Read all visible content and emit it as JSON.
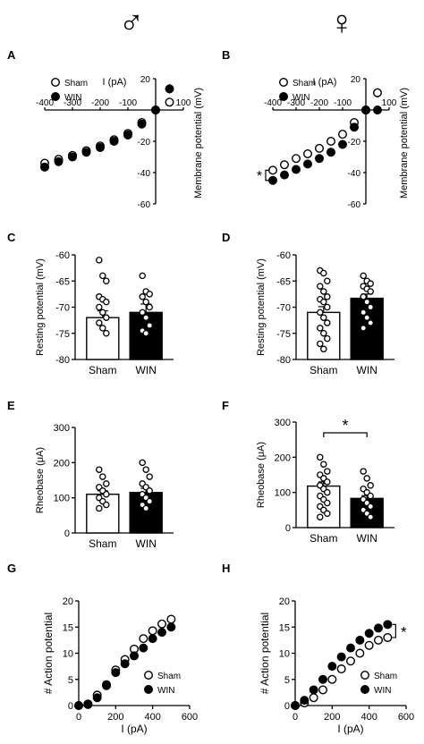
{
  "header": {
    "male_symbol": "♂",
    "female_symbol": "♀"
  },
  "legend_labels": {
    "sham": "Sham",
    "win": "WIN"
  },
  "significance_mark": "*",
  "colors": {
    "sham_fill": "#ffffff",
    "win_fill": "#000000",
    "stroke": "#000000"
  },
  "chart_data": [
    {
      "panel": "A",
      "type": "scatter",
      "xlabel": "I (pA)",
      "ylabel": "Membrane potential (mV)",
      "xlim": [
        -400,
        100
      ],
      "ylim": [
        -60,
        20
      ],
      "xticks": [
        -400,
        -300,
        -200,
        -100,
        100
      ],
      "xtick_labels": [
        "-400",
        "-300",
        "-200",
        "-100",
        "100"
      ],
      "yticks": [
        20,
        -20,
        -40,
        -60
      ],
      "ytick_labels": [
        "20",
        "-20",
        "-40",
        "-60"
      ],
      "legend": "top-left",
      "series": [
        {
          "name": "Sham",
          "x": [
            -400,
            -350,
            -300,
            -250,
            -200,
            -150,
            -100,
            -50,
            0,
            50
          ],
          "y": [
            -34,
            -31.5,
            -29,
            -26,
            -23,
            -19,
            -15,
            -8,
            0,
            5
          ],
          "err": [
            0,
            0,
            0,
            0,
            0,
            0,
            0,
            0,
            0,
            1.5
          ]
        },
        {
          "name": "WIN",
          "x": [
            -400,
            -350,
            -300,
            -250,
            -200,
            -150,
            -100,
            -50,
            0,
            50
          ],
          "y": [
            -36.5,
            -33,
            -30,
            -27,
            -24,
            -20,
            -16,
            -9,
            0,
            13.5
          ],
          "err": [
            0,
            0,
            0,
            0,
            0,
            0,
            0,
            0,
            0,
            3
          ]
        }
      ]
    },
    {
      "panel": "B",
      "type": "scatter",
      "xlabel": "I (pA)",
      "ylabel": "Membrane potential (mV)",
      "xlim": [
        -400,
        100
      ],
      "ylim": [
        -60,
        20
      ],
      "xticks": [
        -400,
        -300,
        -200,
        -100,
        100
      ],
      "xtick_labels": [
        "-400",
        "-300",
        "-200",
        "-100",
        "100"
      ],
      "yticks": [
        20,
        -20,
        -40,
        -60
      ],
      "ytick_labels": [
        "20",
        "-20",
        "-40",
        "-60"
      ],
      "legend": "top-left",
      "annotation": "*",
      "series": [
        {
          "name": "Sham",
          "x": [
            -400,
            -350,
            -300,
            -250,
            -200,
            -150,
            -100,
            -50,
            0,
            50
          ],
          "y": [
            -38.5,
            -35,
            -31,
            -28,
            -24.5,
            -20,
            -15.5,
            -8,
            0,
            11
          ],
          "err": [
            0,
            0,
            0,
            0,
            0,
            0,
            0,
            0,
            0,
            3
          ]
        },
        {
          "name": "WIN",
          "x": [
            -400,
            -350,
            -300,
            -250,
            -200,
            -150,
            -100,
            -50,
            0,
            50
          ],
          "y": [
            -45,
            -41.5,
            -38,
            -34.5,
            -31,
            -27,
            -22,
            -11,
            0,
            0
          ],
          "err": [
            0,
            0,
            0,
            0,
            0,
            0,
            0,
            0,
            0,
            0
          ]
        }
      ]
    },
    {
      "panel": "C",
      "type": "bar",
      "ylabel": "Resting potential (mV)",
      "ylim": [
        -80,
        -60
      ],
      "yticks": [
        -60,
        -65,
        -70,
        -75,
        -80
      ],
      "categories": [
        "Sham",
        "WIN"
      ],
      "values": [
        -72,
        -71
      ],
      "errors": [
        1.3,
        1.6
      ],
      "points": [
        [
          -61,
          -64,
          -65,
          -68,
          -68.5,
          -69,
          -70,
          -71,
          -72,
          -73,
          -74,
          -75
        ],
        [
          -64,
          -67,
          -67.5,
          -68,
          -69,
          -70,
          -71,
          -72,
          -73.5,
          -74.5,
          -75
        ]
      ]
    },
    {
      "panel": "D",
      "type": "bar",
      "ylabel": "Resting potential (mV)",
      "ylim": [
        -80,
        -60
      ],
      "yticks": [
        -60,
        -65,
        -70,
        -75,
        -80
      ],
      "categories": [
        "Sham",
        "WIN"
      ],
      "values": [
        -71,
        -68.3
      ],
      "errors": [
        1.1,
        0.8
      ],
      "points": [
        [
          -63,
          -63.5,
          -65,
          -66,
          -67,
          -68,
          -68.5,
          -69,
          -70,
          -71,
          -72,
          -73,
          -74,
          -75,
          -76,
          -77,
          -78
        ],
        [
          -64,
          -65,
          -65.5,
          -66,
          -66.5,
          -67,
          -68,
          -69,
          -70,
          -71,
          -72,
          -73,
          -74
        ]
      ]
    },
    {
      "panel": "E",
      "type": "bar",
      "ylabel": "Rheobase (μA)",
      "ylim": [
        0,
        300
      ],
      "yticks": [
        0,
        100,
        200,
        300
      ],
      "categories": [
        "Sham",
        "WIN"
      ],
      "values": [
        110,
        115
      ],
      "errors": [
        10,
        12
      ],
      "points": [
        [
          180,
          160,
          140,
          130,
          120,
          110,
          100,
          90,
          80,
          70
        ],
        [
          200,
          180,
          160,
          140,
          130,
          120,
          110,
          100,
          90,
          80,
          70
        ]
      ]
    },
    {
      "panel": "F",
      "type": "bar",
      "ylabel": "Rheobase (μA)",
      "ylim": [
        0,
        300
      ],
      "yticks": [
        0,
        100,
        200,
        300
      ],
      "annotation": "*",
      "categories": [
        "Sham",
        "WIN"
      ],
      "values": [
        118,
        83
      ],
      "errors": [
        12,
        8
      ],
      "points": [
        [
          200,
          180,
          160,
          150,
          140,
          130,
          120,
          110,
          100,
          90,
          80,
          70,
          60,
          50,
          40,
          30
        ],
        [
          160,
          140,
          120,
          110,
          100,
          90,
          80,
          70,
          60,
          50,
          40,
          30
        ]
      ]
    },
    {
      "panel": "G",
      "type": "scatter",
      "xlabel": "I (pA)",
      "ylabel": "# Action potential",
      "xlim": [
        0,
        600
      ],
      "ylim": [
        0,
        20
      ],
      "xticks": [
        0,
        200,
        400,
        600
      ],
      "yticks": [
        0,
        5,
        10,
        15,
        20
      ],
      "legend": "bottom-right",
      "series": [
        {
          "name": "Sham",
          "x": [
            0,
            50,
            100,
            150,
            200,
            250,
            300,
            350,
            400,
            450,
            500
          ],
          "y": [
            0,
            0.3,
            2,
            4,
            6.8,
            8.8,
            10.8,
            12.8,
            14.3,
            15.6,
            16.5
          ]
        },
        {
          "name": "WIN",
          "x": [
            0,
            50,
            100,
            150,
            200,
            250,
            300,
            350,
            400,
            450,
            500
          ],
          "y": [
            0,
            0.2,
            1.5,
            3.8,
            6.3,
            8,
            9.5,
            11,
            12.8,
            14,
            15
          ]
        }
      ]
    },
    {
      "panel": "H",
      "type": "scatter",
      "xlabel": "I (pA)",
      "ylabel": "# Action potential",
      "xlim": [
        0,
        600
      ],
      "ylim": [
        0,
        20
      ],
      "xticks": [
        0,
        200,
        400,
        600
      ],
      "yticks": [
        0,
        5,
        10,
        15,
        20
      ],
      "legend": "bottom-right",
      "annotation": "*",
      "series": [
        {
          "name": "Sham",
          "x": [
            0,
            50,
            100,
            150,
            200,
            250,
            300,
            350,
            400,
            450,
            500
          ],
          "y": [
            0,
            0.5,
            1.5,
            3,
            5,
            7,
            8.5,
            10,
            11.5,
            12.5,
            13
          ]
        },
        {
          "name": "WIN",
          "x": [
            0,
            50,
            100,
            150,
            200,
            250,
            300,
            350,
            400,
            450,
            500
          ],
          "y": [
            0,
            1,
            3,
            5,
            7.5,
            9.3,
            11,
            12.5,
            13.8,
            14.8,
            15.5
          ]
        }
      ]
    }
  ]
}
